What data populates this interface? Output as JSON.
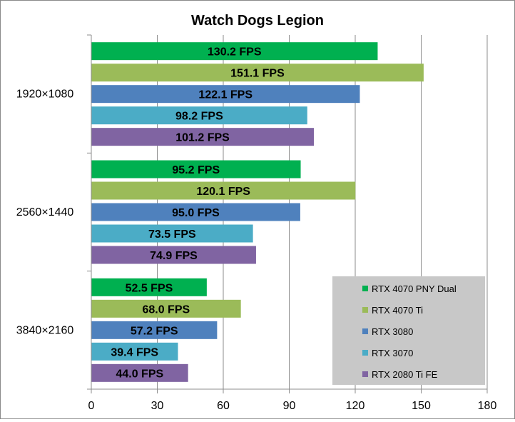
{
  "chart_data": {
    "type": "bar",
    "orientation": "horizontal",
    "title": "Watch Dogs Legion",
    "categories": [
      "1920×1080",
      "2560×1440",
      "3840×2160"
    ],
    "value_suffix": " FPS",
    "xlim": [
      0,
      180
    ],
    "xticks": [
      0,
      30,
      60,
      90,
      120,
      150,
      180
    ],
    "grid": true,
    "legend_position": "bottom-right",
    "series": [
      {
        "name": "RTX 4070 PNY Dual",
        "color": "#00b050",
        "values": [
          130.2,
          95.2,
          52.5
        ]
      },
      {
        "name": "RTX 4070 Ti",
        "color": "#9bbb59",
        "values": [
          151.1,
          120.1,
          68.0
        ]
      },
      {
        "name": "RTX 3080",
        "color": "#4f81bd",
        "values": [
          122.1,
          95.0,
          57.2
        ]
      },
      {
        "name": "RTX 3070",
        "color": "#4bacc6",
        "values": [
          98.2,
          73.5,
          39.4
        ]
      },
      {
        "name": "RTX 2080 Ti FE",
        "color": "#8064a2",
        "values": [
          101.2,
          74.9,
          44.0
        ]
      }
    ]
  }
}
